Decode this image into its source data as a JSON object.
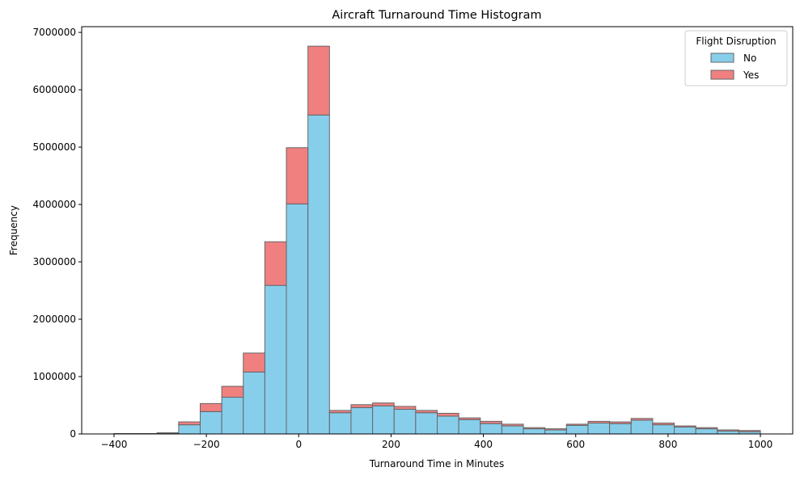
{
  "chart_data": {
    "type": "bar",
    "stacked": true,
    "title": "Aircraft Turnaround Time Histogram",
    "xlabel": "Turnaround Time in Minutes",
    "ylabel": "Frequency",
    "xlim": [
      -470,
      1070
    ],
    "ylim": [
      0,
      7100000
    ],
    "xticks": [
      -400,
      -200,
      0,
      200,
      400,
      600,
      800,
      1000
    ],
    "yticks": [
      0,
      1000000,
      2000000,
      3000000,
      4000000,
      5000000,
      6000000,
      7000000
    ],
    "bin_edges": [
      -400,
      -353.33,
      -306.67,
      -260,
      -213.33,
      -166.67,
      -120,
      -73.33,
      -26.67,
      20,
      66.67,
      113.33,
      160,
      206.67,
      253.33,
      300,
      346.67,
      393.33,
      440,
      486.67,
      533.33,
      580,
      626.67,
      673.33,
      720,
      766.67,
      813.33,
      860,
      906.67,
      953.33,
      1000
    ],
    "legend": {
      "title": "Flight Disruption",
      "position": "top-right"
    },
    "grid": false,
    "series": [
      {
        "name": "No",
        "color": "#87ceeb",
        "values": [
          5000,
          6000,
          15000,
          160000,
          390000,
          640000,
          1080000,
          2590000,
          4010000,
          5560000,
          370000,
          460000,
          490000,
          430000,
          370000,
          310000,
          250000,
          180000,
          140000,
          90000,
          70000,
          150000,
          190000,
          180000,
          240000,
          160000,
          120000,
          90000,
          50000,
          40000
        ]
      },
      {
        "name": "Yes",
        "color": "#f08080",
        "values": [
          1000,
          1000,
          5000,
          50000,
          140000,
          190000,
          330000,
          760000,
          980000,
          1200000,
          40000,
          50000,
          50000,
          50000,
          40000,
          50000,
          30000,
          40000,
          30000,
          20000,
          20000,
          20000,
          30000,
          30000,
          30000,
          30000,
          20000,
          20000,
          20000,
          20000
        ]
      }
    ]
  }
}
